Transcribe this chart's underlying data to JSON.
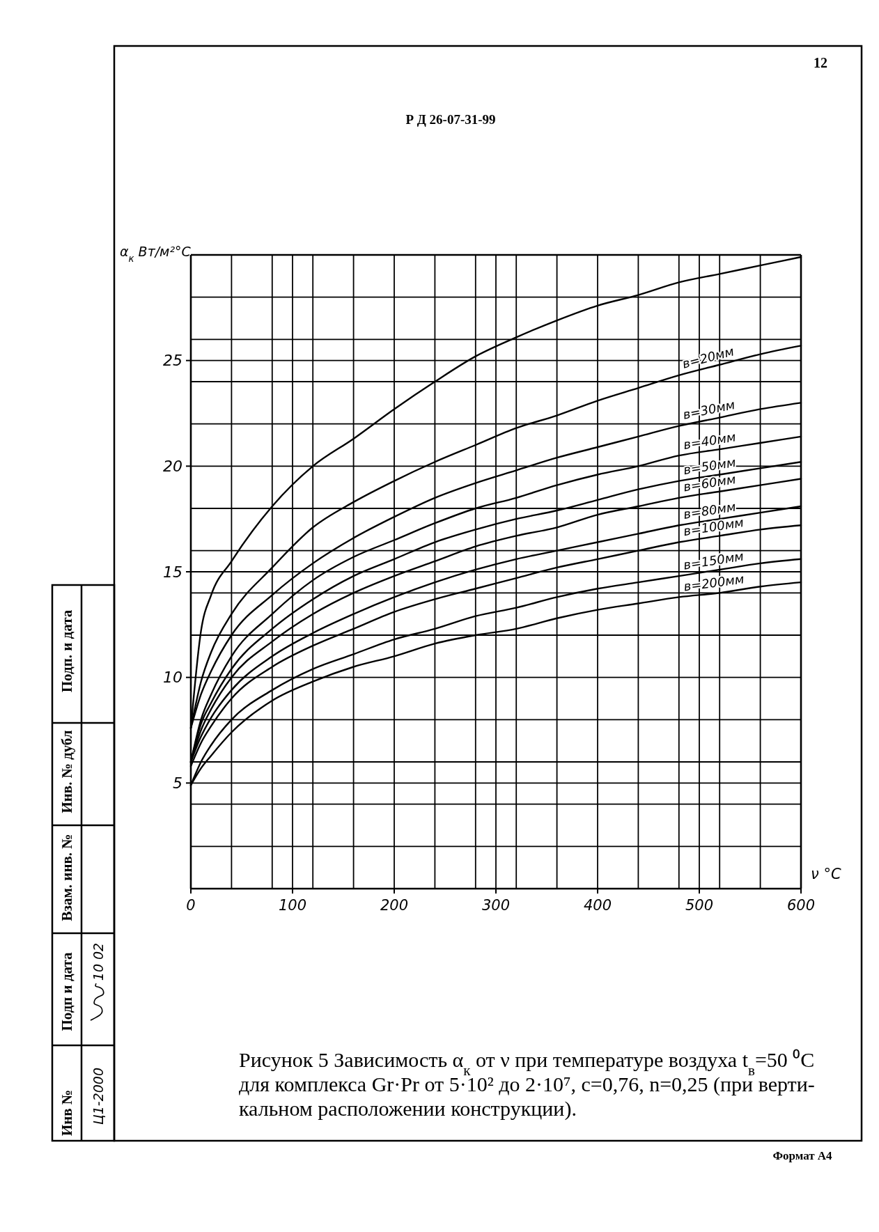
{
  "chart_data": {
    "type": "line",
    "title": "Рисунок 5  Зависимость α$_{к}$ от ν при температуре воздуха t$_{в}$=50 ⁰C\nдля комплекса Gr·Pr от 5·10² до  2·10⁷, c=0,76, n=0,25 (при верти-\nкальном расположении конструкции).",
    "xlabel": "ν °C",
    "ylabel": "α$_{к}$ Вт/м²°C",
    "x": [
      0,
      10,
      20,
      40,
      80,
      120,
      160,
      200,
      240,
      280,
      320,
      360,
      400,
      440,
      480,
      520,
      560,
      600
    ],
    "series": [
      {
        "color": "#000000",
        "values": [
          7.6,
          12.2,
          13.9,
          15.5,
          18.1,
          20.0,
          21.3,
          22.7,
          24.0,
          25.2,
          26.1,
          26.9,
          27.6,
          28.1,
          28.7,
          29.1,
          29.5,
          29.9
        ]
      },
      {
        "name": "в=20мм",
        "color": "#000000",
        "values": [
          7.6,
          9.8,
          11.2,
          13.0,
          15.2,
          17.1,
          18.3,
          19.3,
          20.2,
          21.0,
          21.8,
          22.4,
          23.1,
          23.7,
          24.3,
          24.8,
          25.3,
          25.7
        ]
      },
      {
        "name": "в=30мм",
        "color": "#000000",
        "values": [
          7.6,
          9.2,
          10.3,
          12.0,
          13.9,
          15.4,
          16.6,
          17.6,
          18.5,
          19.2,
          19.8,
          20.4,
          20.9,
          21.4,
          21.9,
          22.3,
          22.7,
          23.0
        ]
      },
      {
        "name": "в=40мм",
        "color": "#000000",
        "values": [
          6.0,
          8.0,
          9.2,
          11.0,
          13.0,
          14.6,
          15.7,
          16.5,
          17.3,
          18.0,
          18.5,
          19.1,
          19.6,
          20.0,
          20.5,
          20.8,
          21.1,
          21.4
        ]
      },
      {
        "name": "в=50мм",
        "color": "#000000",
        "values": [
          6.0,
          7.8,
          8.8,
          10.4,
          12.3,
          13.7,
          14.8,
          15.6,
          16.4,
          17.0,
          17.5,
          17.9,
          18.4,
          18.9,
          19.3,
          19.6,
          19.9,
          20.2
        ]
      },
      {
        "name": "в=60мм",
        "color": "#000000",
        "values": [
          6.0,
          7.5,
          8.5,
          10.0,
          11.7,
          13.0,
          14.0,
          14.8,
          15.5,
          16.2,
          16.7,
          17.1,
          17.7,
          18.1,
          18.5,
          18.8,
          19.1,
          19.4
        ]
      },
      {
        "name": "в=80мм",
        "color": "#000000",
        "values": [
          6.0,
          7.2,
          8.1,
          9.4,
          11.0,
          12.1,
          13.0,
          13.8,
          14.5,
          15.1,
          15.6,
          16.0,
          16.4,
          16.8,
          17.2,
          17.5,
          17.8,
          18.1
        ]
      },
      {
        "name": "в=100мм",
        "color": "#000000",
        "values": [
          5.8,
          6.9,
          7.7,
          9.0,
          10.5,
          11.5,
          12.3,
          13.1,
          13.7,
          14.2,
          14.7,
          15.2,
          15.6,
          16.0,
          16.4,
          16.7,
          17.0,
          17.2
        ]
      },
      {
        "name": "в=150мм",
        "color": "#000000",
        "values": [
          4.9,
          6.0,
          6.8,
          8.0,
          9.4,
          10.4,
          11.1,
          11.8,
          12.3,
          12.9,
          13.3,
          13.8,
          14.2,
          14.5,
          14.8,
          15.1,
          15.4,
          15.6
        ]
      },
      {
        "name": "в=200мм",
        "color": "#000000",
        "values": [
          4.9,
          5.7,
          6.3,
          7.4,
          8.9,
          9.8,
          10.5,
          11.0,
          11.6,
          12.0,
          12.3,
          12.8,
          13.2,
          13.5,
          13.8,
          14.0,
          14.3,
          14.5
        ]
      }
    ],
    "xlim": [
      0,
      600
    ],
    "ylim": [
      0,
      30
    ],
    "xticks": [
      0,
      {
        "value": 40,
        "label": null
      },
      {
        "value": 80,
        "label": null
      },
      100,
      {
        "value": 120,
        "label": null
      },
      {
        "value": 160,
        "label": null
      },
      200,
      {
        "value": 240,
        "label": null
      },
      {
        "value": 280,
        "label": null
      },
      300,
      {
        "value": 320,
        "label": null
      },
      {
        "value": 360,
        "label": null
      },
      400,
      {
        "value": 440,
        "label": null
      },
      {
        "value": 480,
        "label": null
      },
      500,
      {
        "value": 520,
        "label": null
      },
      {
        "value": 560,
        "label": null
      },
      600
    ],
    "yticks": [
      {
        "value": 0,
        "label": null
      },
      {
        "value": 2,
        "label": null
      },
      {
        "value": 4,
        "label": null
      },
      5,
      {
        "value": 6,
        "label": null
      },
      {
        "value": 8,
        "label": null
      },
      10,
      {
        "value": 12,
        "label": null
      },
      {
        "value": 14,
        "label": null
      },
      15,
      {
        "value": 16,
        "label": null
      },
      {
        "value": 18,
        "label": null
      },
      20,
      {
        "value": 22,
        "label": null
      },
      {
        "value": 24,
        "label": null
      },
      25,
      {
        "value": 26,
        "label": null
      },
      {
        "value": 28,
        "label": null
      },
      {
        "value": 30,
        "label": null
      }
    ],
    "grid": true,
    "annotations": [
      "Р Д 26-07-31-99",
      "12",
      "Формат А4",
      "Подп. и дата",
      "Инв. № дубл",
      "Взам. инв. №",
      "Подп и дата",
      "Инв №",
      "10 02",
      "Ц1-2000"
    ]
  }
}
